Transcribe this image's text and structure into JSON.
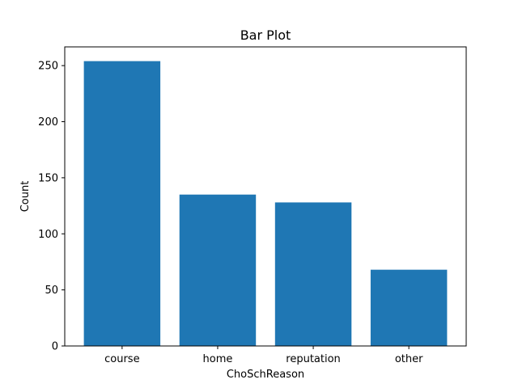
{
  "chart_data": {
    "type": "bar",
    "title": "Bar Plot",
    "xlabel": "ChoSchReason",
    "ylabel": "Count",
    "categories": [
      "course",
      "home",
      "reputation",
      "other"
    ],
    "values": [
      254,
      135,
      128,
      68
    ],
    "ylim": [
      0,
      266.7
    ],
    "yticks": [
      0,
      50,
      100,
      150,
      200,
      250
    ],
    "bar_color": "#1f77b4",
    "grid": false,
    "legend": "none"
  }
}
